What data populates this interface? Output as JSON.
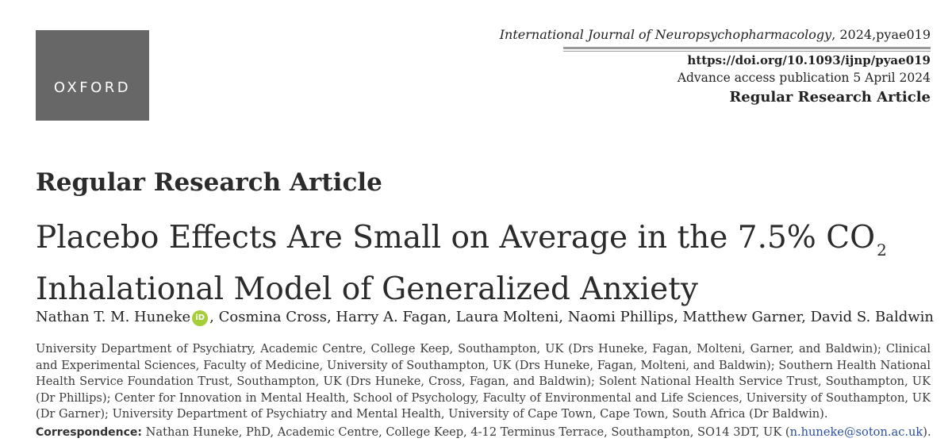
{
  "logo": {
    "text": "OXFORD"
  },
  "header": {
    "journal_name": "International Journal of Neuropsychopharmacology",
    "journal_rest": ", 2024,pyae019",
    "doi": "https://doi.org/10.1093/ijnp/pyae019",
    "advance_access": "Advance access publication 5 April 2024",
    "article_type_right": "Regular Research Article"
  },
  "article": {
    "type": "Regular Research Article",
    "title_line1": "Placebo Effects Are Small on Average in the 7.5% CO",
    "title_subscript": "2",
    "title_line2": "Inhalational Model of Generalized Anxiety",
    "authors_first": "Nathan T. M. Huneke",
    "orcid_label": "iD",
    "authors_rest": ", Cosmina Cross, Harry A. Fagan, Laura Molteni, Naomi Phillips, Matthew Garner, David S. Baldwin",
    "affiliations": "University Department of Psychiatry, Academic Centre, College Keep, Southampton, UK (Drs Huneke, Fagan, Molteni, Garner, and Baldwin); Clinical and Experimental Sciences, Faculty of Medicine, University of Southampton, UK (Drs Huneke, Fagan, Molteni, and Baldwin); Southern Health National Health Service Foundation Trust, Southampton, UK (Drs Huneke, Cross, Fagan, and Baldwin); Solent National Health Service Trust, Southampton, UK (Dr Phillips); Center for Innovation in Mental Health, School of Psychology, Faculty of Environmental and Life Sciences, University of Southampton, UK (Dr Garner); University Department of Psychiatry and Mental Health, University of Cape Town, Cape Town, South Africa (Dr Baldwin).",
    "correspondence_label": "Correspondence:",
    "correspondence_text": " Nathan Huneke, PhD, Academic Centre, College Keep, 4-12 Terminus Terrace, Southampton, SO14 3DT, UK (",
    "correspondence_email": "n.huneke@soton.ac.uk",
    "correspondence_end": ")."
  },
  "colors": {
    "logo_bg": "#676767",
    "orcid": "#a6ce39",
    "link": "#2b4fa0"
  }
}
